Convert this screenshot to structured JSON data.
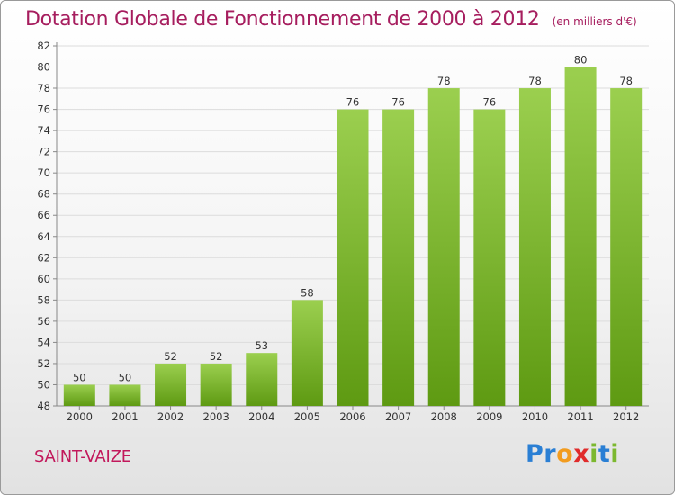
{
  "chart_data": {
    "type": "bar",
    "title": "Dotation Globale de Fonctionnement de 2000 à 2012",
    "subtitle": "(en milliers d'€)",
    "categories": [
      "2000",
      "2001",
      "2002",
      "2003",
      "2004",
      "2005",
      "2006",
      "2007",
      "2008",
      "2009",
      "2010",
      "2011",
      "2012"
    ],
    "values": [
      50,
      50,
      52,
      52,
      53,
      58,
      76,
      76,
      78,
      76,
      78,
      80,
      78
    ],
    "ylim": [
      48,
      82
    ],
    "yticks": [
      48,
      50,
      52,
      54,
      56,
      58,
      60,
      62,
      64,
      66,
      68,
      70,
      72,
      74,
      76,
      78,
      80,
      82
    ],
    "grid": true,
    "colors": {
      "bar_top": "#9bcf4f",
      "bar_bottom": "#5e9a12",
      "title": "#a61d5e"
    }
  },
  "footer": {
    "commune": "SAINT-VAIZE",
    "logo": "Proxiti"
  }
}
